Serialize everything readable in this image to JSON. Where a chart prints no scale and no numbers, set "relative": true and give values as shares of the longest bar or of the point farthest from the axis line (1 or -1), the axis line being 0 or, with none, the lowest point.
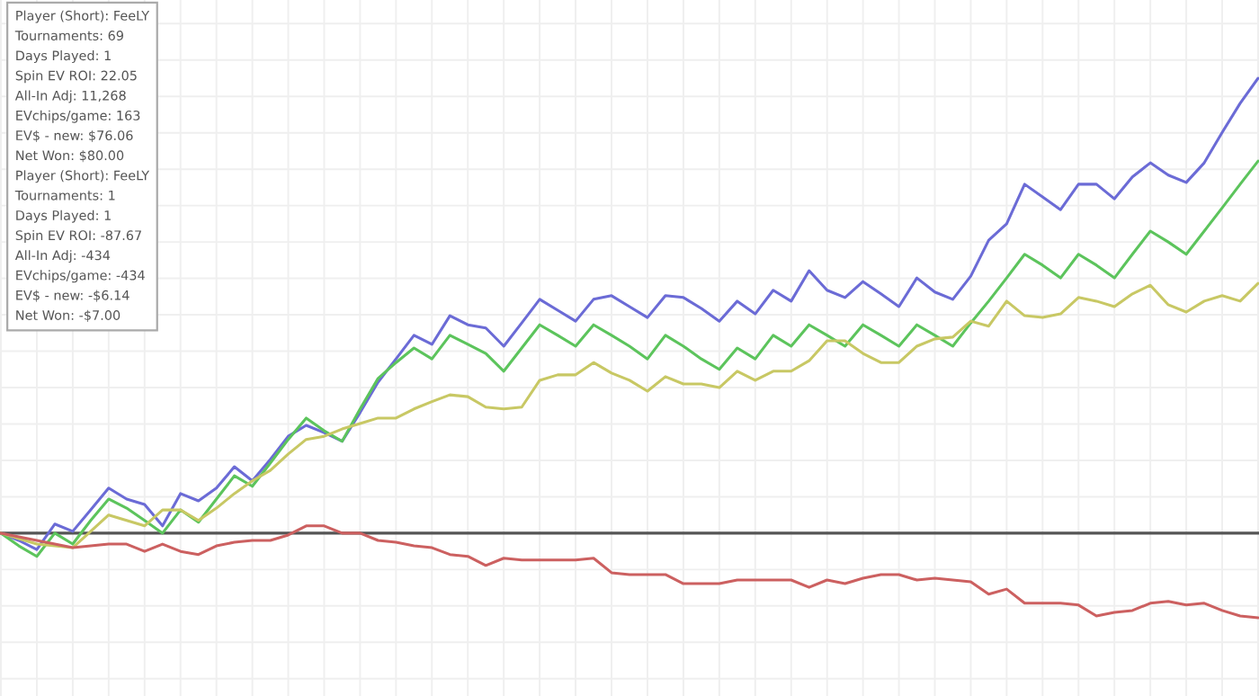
{
  "chart_data": {
    "type": "line",
    "relative": true,
    "grid": true,
    "legend": false,
    "categories": [
      null,
      null,
      null,
      null,
      null,
      null,
      null,
      null,
      null,
      null,
      null,
      null,
      null,
      null,
      null,
      null,
      null,
      null,
      null,
      null,
      null,
      null,
      null,
      null,
      null,
      null,
      null,
      null,
      null,
      null,
      null,
      null,
      null,
      null,
      null,
      null,
      null,
      null,
      null,
      null,
      null,
      null,
      null,
      null,
      null,
      null,
      null,
      null,
      null,
      null,
      null,
      null,
      null,
      null,
      null,
      null,
      null,
      null,
      null,
      null,
      null,
      null,
      null,
      null,
      null,
      null,
      null,
      null,
      null,
      null,
      null
    ],
    "annotations": [
      "Player (Short): FeeLY",
      "Tournaments: 69",
      "Days Played: 1",
      "Spin EV ROI: 22.05",
      "All-In Adj: 11,268",
      "EVchips/game: 163",
      "EV$ - new: $76.06",
      "Net Won: $80.00",
      "Player (Short): FeeLY",
      "Tournaments: 1",
      "Days Played: 1",
      "Spin EV ROI: -87.67",
      "All-In Adj: -434",
      "EVchips/game: -434",
      "EV$ - new: -$6.14",
      "Net Won: -$7.00"
    ],
    "series": [
      {
        "color": "#6b6bd6",
        "values": [
          0,
          -0.016,
          -0.036,
          0.02,
          0.004,
          0.051,
          0.099,
          0.075,
          0.063,
          0.016,
          0.087,
          0.071,
          0.099,
          0.146,
          0.115,
          0.162,
          0.213,
          0.237,
          0.221,
          0.202,
          0.265,
          0.332,
          0.383,
          0.435,
          0.415,
          0.478,
          0.458,
          0.451,
          0.411,
          0.462,
          0.514,
          0.49,
          0.466,
          0.514,
          0.522,
          0.498,
          0.474,
          0.522,
          0.518,
          0.494,
          0.466,
          0.51,
          0.482,
          0.534,
          0.51,
          0.577,
          0.534,
          0.518,
          0.553,
          0.526,
          0.498,
          0.561,
          0.53,
          0.514,
          0.565,
          0.644,
          0.68,
          0.767,
          0.739,
          0.711,
          0.767,
          0.767,
          0.735,
          0.783,
          0.814,
          0.787,
          0.771,
          0.814,
          0.881,
          0.945,
          1
        ]
      },
      {
        "color": "#5cc45c",
        "values": [
          0,
          -0.028,
          -0.051,
          0,
          -0.024,
          0.028,
          0.075,
          0.055,
          0.028,
          0,
          0.051,
          0.024,
          0.075,
          0.126,
          0.103,
          0.154,
          0.206,
          0.253,
          0.225,
          0.202,
          0.273,
          0.34,
          0.375,
          0.407,
          0.383,
          0.435,
          0.415,
          0.395,
          0.356,
          0.407,
          0.458,
          0.435,
          0.411,
          0.458,
          0.435,
          0.411,
          0.383,
          0.435,
          0.411,
          0.383,
          0.36,
          0.407,
          0.383,
          0.435,
          0.411,
          0.458,
          0.435,
          0.411,
          0.458,
          0.435,
          0.411,
          0.458,
          0.435,
          0.411,
          0.462,
          0.51,
          0.561,
          0.613,
          0.589,
          0.561,
          0.613,
          0.589,
          0.561,
          0.613,
          0.664,
          0.64,
          0.613,
          0.664,
          0.715,
          0.767,
          0.818
        ]
      },
      {
        "color": "#c8c864",
        "values": [
          0,
          -0.012,
          -0.024,
          -0.028,
          -0.032,
          0.004,
          0.04,
          0.028,
          0.016,
          0.051,
          0.051,
          0.028,
          0.055,
          0.087,
          0.115,
          0.138,
          0.174,
          0.206,
          0.213,
          0.229,
          0.241,
          0.253,
          0.253,
          0.273,
          0.289,
          0.304,
          0.3,
          0.277,
          0.273,
          0.277,
          0.336,
          0.348,
          0.348,
          0.375,
          0.352,
          0.336,
          0.312,
          0.344,
          0.328,
          0.328,
          0.32,
          0.356,
          0.336,
          0.356,
          0.356,
          0.379,
          0.423,
          0.423,
          0.395,
          0.375,
          0.375,
          0.411,
          0.427,
          0.431,
          0.466,
          0.455,
          0.51,
          0.478,
          0.474,
          0.482,
          0.518,
          0.51,
          0.498,
          0.526,
          0.545,
          0.502,
          0.486,
          0.51,
          0.522,
          0.51,
          0.549
        ]
      },
      {
        "color": "#cc6060",
        "values": [
          0,
          -0.008,
          -0.016,
          -0.024,
          -0.032,
          -0.028,
          -0.024,
          -0.024,
          -0.04,
          -0.024,
          -0.04,
          -0.047,
          -0.028,
          -0.02,
          -0.016,
          -0.016,
          -0.004,
          0.016,
          0.016,
          0,
          0,
          -0.016,
          -0.02,
          -0.028,
          -0.032,
          -0.047,
          -0.051,
          -0.071,
          -0.055,
          -0.059,
          -0.059,
          -0.059,
          -0.059,
          -0.055,
          -0.087,
          -0.091,
          -0.091,
          -0.091,
          -0.111,
          -0.111,
          -0.111,
          -0.103,
          -0.103,
          -0.103,
          -0.103,
          -0.119,
          -0.103,
          -0.111,
          -0.099,
          -0.091,
          -0.091,
          -0.103,
          -0.099,
          -0.103,
          -0.107,
          -0.134,
          -0.123,
          -0.154,
          -0.154,
          -0.154,
          -0.158,
          -0.182,
          -0.174,
          -0.17,
          -0.154,
          -0.15,
          -0.158,
          -0.154,
          -0.17,
          -0.182,
          -0.186
        ]
      }
    ]
  }
}
